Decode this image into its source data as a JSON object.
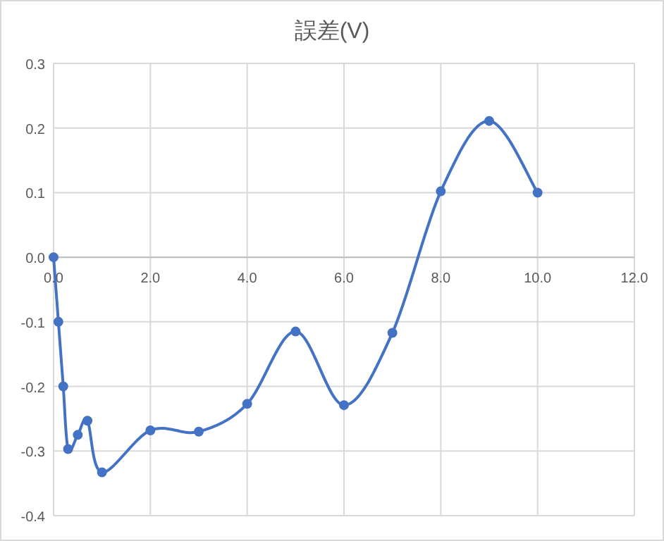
{
  "chart_data": {
    "type": "line",
    "title": "誤差(V)",
    "series": [
      {
        "color": "#4472c4",
        "x": [
          0,
          0.1,
          0.2,
          0.3,
          0.5,
          0.7,
          1,
          2,
          3,
          4,
          5,
          6,
          7,
          8,
          9,
          10
        ],
        "values": [
          0,
          -0.1,
          -0.2,
          -0.297,
          -0.275,
          -0.253,
          -0.333,
          -0.268,
          -0.27,
          -0.227,
          -0.115,
          -0.229,
          -0.117,
          0.102,
          0.211,
          0.1
        ]
      }
    ],
    "xlim": [
      0,
      12
    ],
    "xticks": [
      {
        "value": 0,
        "label": "0.0"
      },
      {
        "value": 2,
        "label": "2.0"
      },
      {
        "value": 4,
        "label": "4.0"
      },
      {
        "value": 6,
        "label": "6.0"
      },
      {
        "value": 8,
        "label": "8.0"
      },
      {
        "value": 10,
        "label": "10.0"
      },
      {
        "value": 12,
        "label": "12.0"
      }
    ],
    "ylim": [
      -0.4,
      0.3
    ],
    "yticks": [
      {
        "value": -0.4,
        "label": "-0.4"
      },
      {
        "value": -0.3,
        "label": "-0.3"
      },
      {
        "value": -0.2,
        "label": "-0.2"
      },
      {
        "value": -0.1,
        "label": "-0.1"
      },
      {
        "value": 0,
        "label": "0.0"
      },
      {
        "value": 0.1,
        "label": "0.1"
      },
      {
        "value": 0.2,
        "label": "0.2"
      },
      {
        "value": 0.3,
        "label": "0.3"
      }
    ],
    "grid": true,
    "marker": "circle",
    "line_style": "solid"
  }
}
